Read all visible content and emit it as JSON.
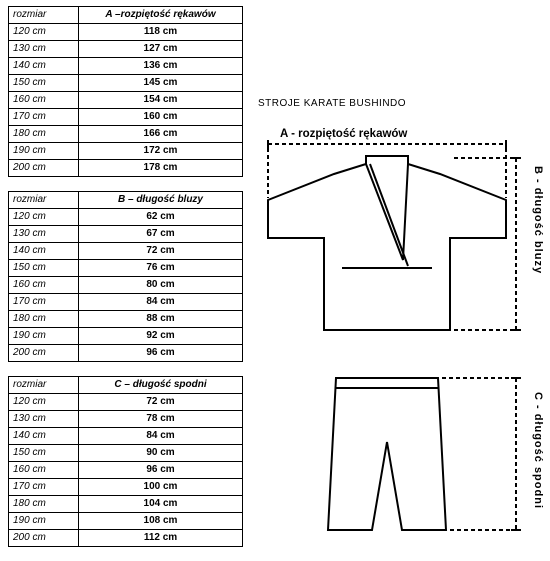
{
  "title": "STROJE KARATE  BUSHINDO",
  "dimA": {
    "label": "A - rozpiętość rękawów"
  },
  "dimB": {
    "label": "B - długość bluzy"
  },
  "dimC": {
    "label": "C - długość spodni"
  },
  "tables": {
    "colors": {
      "border": "#000000",
      "text": "#000000"
    },
    "a": {
      "header_size": "rozmiar",
      "header_val": "A –rozpiętość rękawów",
      "rows": [
        {
          "size": "120 cm",
          "val": "118 cm"
        },
        {
          "size": "130 cm",
          "val": "127 cm"
        },
        {
          "size": "140 cm",
          "val": "136 cm"
        },
        {
          "size": "150 cm",
          "val": "145 cm"
        },
        {
          "size": "160 cm",
          "val": "154 cm"
        },
        {
          "size": "170 cm",
          "val": "160 cm"
        },
        {
          "size": "180 cm",
          "val": "166 cm"
        },
        {
          "size": "190 cm",
          "val": "172 cm"
        },
        {
          "size": "200 cm",
          "val": "178 cm"
        }
      ]
    },
    "b": {
      "header_size": "rozmiar",
      "header_val": "B – długość bluzy",
      "rows": [
        {
          "size": "120 cm",
          "val": "62 cm"
        },
        {
          "size": "130 cm",
          "val": "67 cm"
        },
        {
          "size": "140 cm",
          "val": "72 cm"
        },
        {
          "size": "150 cm",
          "val": "76 cm"
        },
        {
          "size": "160 cm",
          "val": "80 cm"
        },
        {
          "size": "170 cm",
          "val": "84 cm"
        },
        {
          "size": "180 cm",
          "val": "88 cm"
        },
        {
          "size": "190 cm",
          "val": "92 cm"
        },
        {
          "size": "200 cm",
          "val": "96 cm"
        }
      ]
    },
    "c": {
      "header_size": "rozmiar",
      "header_val": "C –  długość spodni",
      "rows": [
        {
          "size": "120 cm",
          "val": "72 cm"
        },
        {
          "size": "130 cm",
          "val": "78 cm"
        },
        {
          "size": "140 cm",
          "val": "84 cm"
        },
        {
          "size": "150 cm",
          "val": "90 cm"
        },
        {
          "size": "160 cm",
          "val": "96 cm"
        },
        {
          "size": "170 cm",
          "val": "100 cm"
        },
        {
          "size": "180 cm",
          "val": "104 cm"
        },
        {
          "size": "190 cm",
          "val": "108 cm"
        },
        {
          "size": "200 cm",
          "val": "112 cm"
        }
      ]
    }
  },
  "diagram": {
    "stroke": "#000000",
    "stroke_width": 2,
    "dash": "4,3"
  }
}
